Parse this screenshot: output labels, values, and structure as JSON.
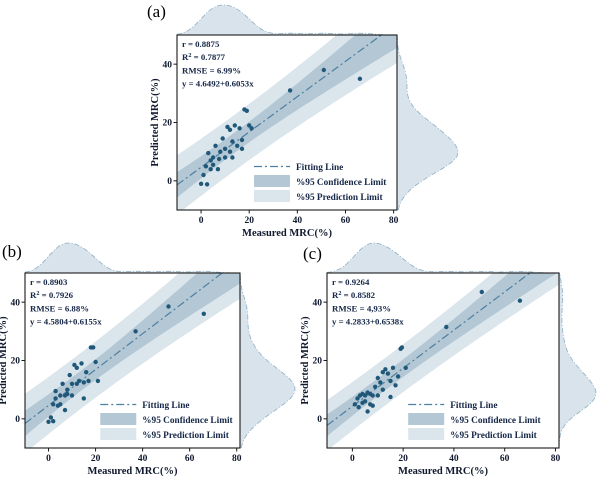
{
  "colors": {
    "background": "#ffffff",
    "axis": "#1a1a1a",
    "stats_text": "#152647",
    "tick_text": "#10192e",
    "point": "#20587a",
    "fit_line": "#4c7fa1",
    "confidence_band": "#b3c7d4",
    "prediction_band": "#dbe5ec",
    "density_fill": "#d8e3eb",
    "density_stroke": "#8fafc3"
  },
  "axes": {
    "xlabel": "Measured MRC(%)",
    "ylabel": "Predicted MRC(%)",
    "xticks": [
      0,
      20,
      40,
      60,
      80
    ],
    "yticks": [
      0,
      20,
      40
    ],
    "xlim": [
      -10,
      81.4
    ],
    "ylim": [
      -10,
      50
    ]
  },
  "legend": {
    "items": [
      {
        "label": "Fitting Line",
        "type": "line"
      },
      {
        "label": "%95 Confidence Limit",
        "type": "conf"
      },
      {
        "label": "%95 Prediction Limit",
        "type": "pred"
      }
    ],
    "position": "lower right inside plot"
  },
  "chart_data": [
    {
      "type": "scatter",
      "panel": "a",
      "label": "(a)",
      "stats": {
        "r_line": "r = 0.8875",
        "r2_base": "R",
        "r2_sup": "2",
        "r2_rest": " = 0.7877",
        "rmse_line": "RMSE = 6.99%",
        "eq_line": "y = 4.6492+0.6053x"
      },
      "fit": {
        "intercept": 4.6492,
        "slope": 0.6053
      },
      "marginals": "kde top and right",
      "points": [
        [
          0,
          -1
        ],
        [
          2.5,
          -1.2
        ],
        [
          1,
          2
        ],
        [
          2,
          5
        ],
        [
          3,
          9.5
        ],
        [
          4,
          4
        ],
        [
          4,
          7
        ],
        [
          5,
          8
        ],
        [
          5,
          5.5
        ],
        [
          6,
          12
        ],
        [
          7,
          4
        ],
        [
          7.5,
          7.5
        ],
        [
          8,
          10
        ],
        [
          9,
          14.5
        ],
        [
          10,
          8
        ],
        [
          10,
          11
        ],
        [
          11,
          18.5
        ],
        [
          12,
          17.5
        ],
        [
          12,
          10
        ],
        [
          13,
          13.5
        ],
        [
          13,
          8
        ],
        [
          14,
          19
        ],
        [
          15,
          12
        ],
        [
          16,
          18
        ],
        [
          17,
          14
        ],
        [
          17,
          11
        ],
        [
          18,
          24.5
        ],
        [
          19,
          24
        ],
        [
          20,
          19
        ],
        [
          21,
          18
        ],
        [
          37,
          31
        ],
        [
          51,
          38
        ],
        [
          66,
          35
        ]
      ]
    },
    {
      "type": "scatter",
      "panel": "b",
      "label": "(b)",
      "stats": {
        "r_line": "r = 0.8903",
        "r2_base": "R",
        "r2_sup": "2",
        "r2_rest": " = 0.7926",
        "rmse_line": "RMSE = 6.88%",
        "eq_line": "y = 4.5804+0.6155x"
      },
      "fit": {
        "intercept": 4.5804,
        "slope": 0.6155
      },
      "marginals": "kde top and right",
      "points": [
        [
          0,
          -1
        ],
        [
          2,
          -0.8
        ],
        [
          1,
          0.5
        ],
        [
          2,
          5
        ],
        [
          3,
          9.5
        ],
        [
          3,
          7
        ],
        [
          4,
          4.5
        ],
        [
          5,
          8
        ],
        [
          5,
          5
        ],
        [
          6,
          12
        ],
        [
          7,
          8
        ],
        [
          7,
          3
        ],
        [
          8,
          10
        ],
        [
          8,
          8.5
        ],
        [
          9,
          15
        ],
        [
          10,
          8
        ],
        [
          10,
          12
        ],
        [
          11,
          18.5
        ],
        [
          12,
          17.5
        ],
        [
          12,
          12
        ],
        [
          13,
          13
        ],
        [
          14,
          19
        ],
        [
          15,
          7
        ],
        [
          15,
          12.5
        ],
        [
          16,
          16
        ],
        [
          17,
          13
        ],
        [
          18,
          24.5
        ],
        [
          19,
          24.5
        ],
        [
          20,
          19.5
        ],
        [
          21,
          13
        ],
        [
          37,
          30
        ],
        [
          51,
          38.5
        ],
        [
          66,
          36
        ]
      ]
    },
    {
      "type": "scatter",
      "panel": "c",
      "label": "(c)",
      "stats": {
        "r_line": "r = 0.9264",
        "r2_base": "R",
        "r2_sup": "2",
        "r2_rest": " = 0.8582",
        "rmse_line": "RMSE = 4,93%",
        "eq_line": "y = 4.2833+0.6538x"
      },
      "fit": {
        "intercept": 4.2833,
        "slope": 0.6538
      },
      "marginals": "kde top and right",
      "points": [
        [
          1,
          5
        ],
        [
          2,
          7
        ],
        [
          2.5,
          4
        ],
        [
          3,
          8
        ],
        [
          4,
          8.5
        ],
        [
          4,
          5.5
        ],
        [
          5,
          8
        ],
        [
          5,
          6
        ],
        [
          6,
          9
        ],
        [
          6,
          2.5
        ],
        [
          7,
          8.5
        ],
        [
          7,
          5
        ],
        [
          8,
          8
        ],
        [
          8,
          4.5
        ],
        [
          9,
          11
        ],
        [
          10,
          14
        ],
        [
          10,
          8
        ],
        [
          11,
          12.5
        ],
        [
          12,
          16
        ],
        [
          12,
          10
        ],
        [
          13,
          17
        ],
        [
          14,
          15.5
        ],
        [
          15,
          13
        ],
        [
          15,
          7.5
        ],
        [
          16,
          17.5
        ],
        [
          17,
          11.5
        ],
        [
          18,
          14.5
        ],
        [
          19,
          24
        ],
        [
          19.5,
          24.5
        ],
        [
          21,
          17.5
        ],
        [
          37,
          31.5
        ],
        [
          51,
          43.5
        ],
        [
          66,
          40.5
        ]
      ]
    }
  ]
}
